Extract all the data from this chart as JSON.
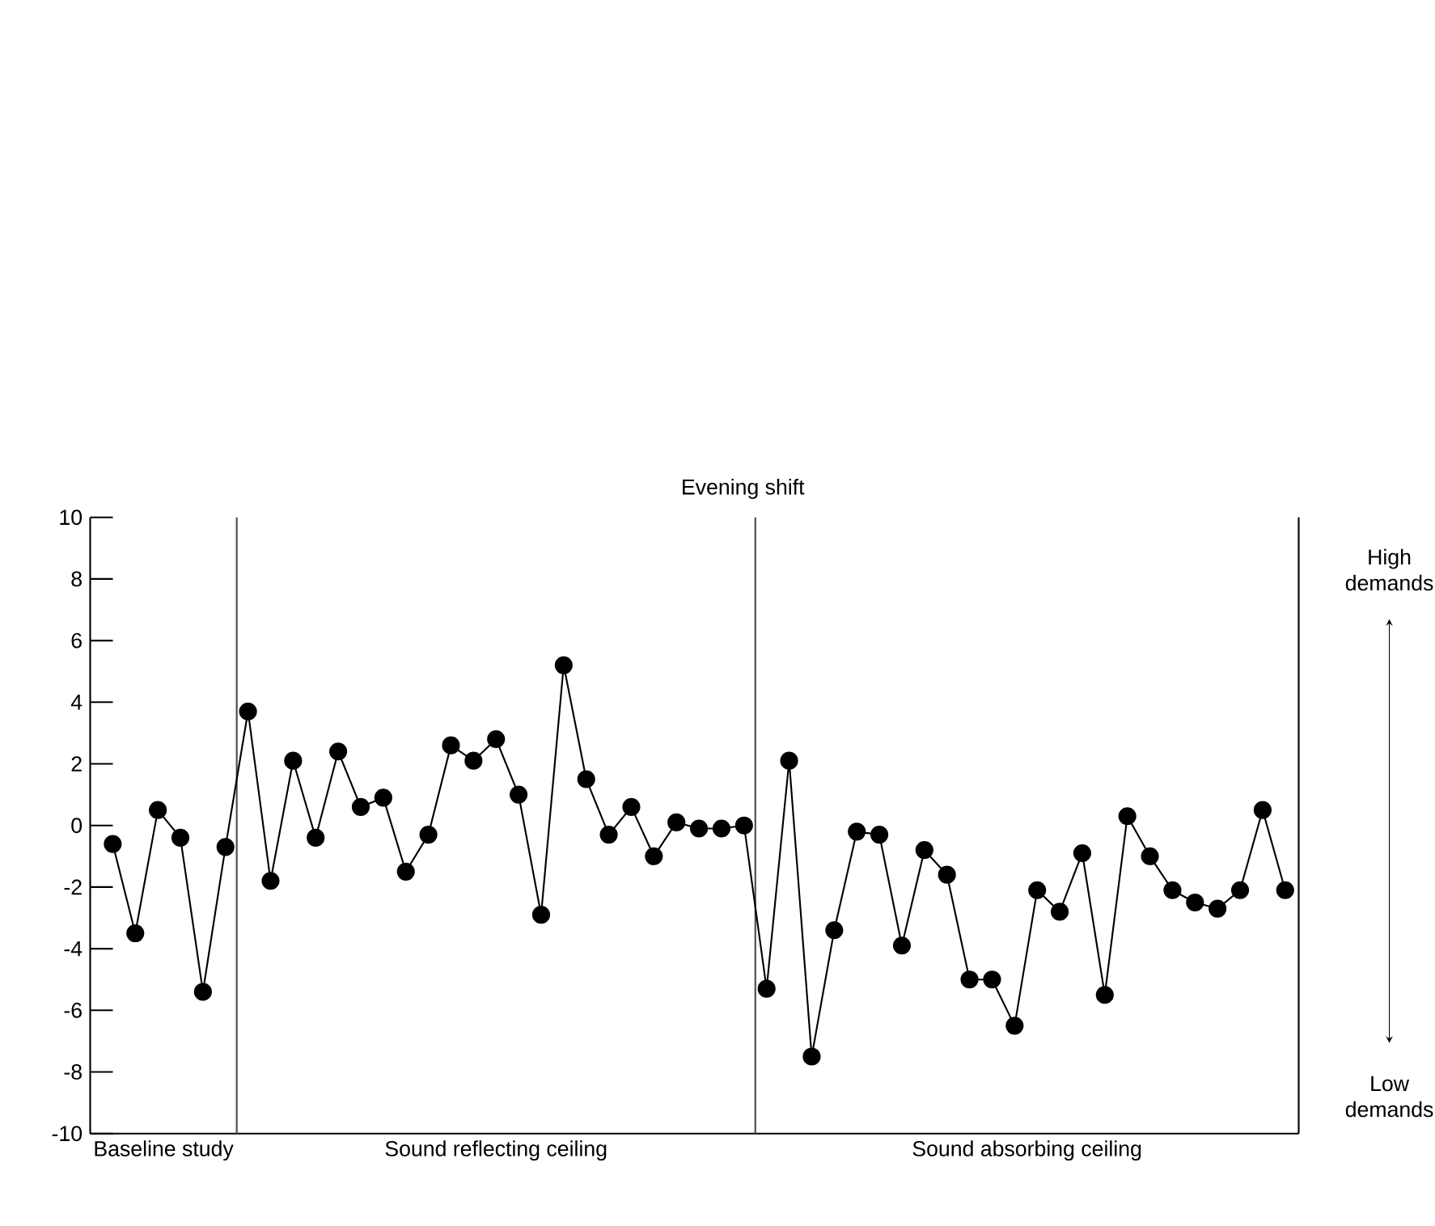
{
  "chart_data": {
    "type": "line",
    "title": "Evening shift",
    "categories": [
      null,
      null,
      null,
      null,
      null,
      null,
      null,
      null,
      null,
      null,
      null,
      null,
      null,
      null,
      null,
      null,
      null,
      null,
      null,
      null,
      null,
      null,
      null,
      null,
      null,
      null,
      null,
      null,
      null,
      null,
      null,
      null,
      null,
      null,
      null,
      null,
      null,
      null,
      null,
      null,
      null,
      null,
      null,
      null,
      null,
      null,
      null,
      null,
      null,
      null,
      null,
      null,
      null
    ],
    "series": [
      {
        "color": "#000000",
        "values": [
          -0.6,
          -3.5,
          0.5,
          -0.4,
          -5.4,
          -0.7,
          3.7,
          -1.8,
          2.1,
          -0.4,
          2.4,
          0.6,
          0.9,
          -1.5,
          -0.3,
          2.6,
          2.1,
          2.8,
          1.0,
          -2.9,
          5.2,
          1.5,
          -0.3,
          0.6,
          -1.0,
          0.1,
          -0.1,
          -0.1,
          0.0,
          -5.3,
          2.1,
          -7.5,
          -3.4,
          -0.2,
          -0.3,
          -3.9,
          -0.8,
          -1.6,
          -5.0,
          -5.0,
          -6.5,
          -2.1,
          -2.8,
          -0.9,
          -5.5,
          0.3,
          -1.0,
          -2.1,
          -2.5,
          -2.7,
          -2.1,
          0.5,
          -2.1
        ]
      }
    ],
    "ylim": [
      -10,
      10
    ],
    "yticks": [
      -10,
      -8,
      -6,
      -4,
      -2,
      0,
      2,
      4,
      6,
      8,
      10
    ],
    "annotations": [
      "Baseline study",
      "Sound reflecting ceiling",
      "Sound absorbing ceiling",
      "High demands",
      "Low demands"
    ],
    "marker": "circle",
    "line_style": "solid"
  }
}
